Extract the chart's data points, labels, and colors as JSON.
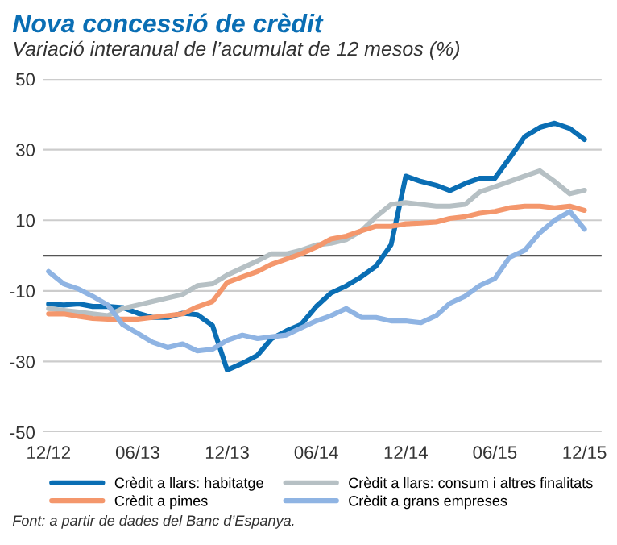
{
  "chart_data": {
    "type": "line",
    "title": "Nova concessió de crèdit",
    "subtitle": "Variació interanual de l’acumulat de 12 mesos (%)",
    "x": [
      "2012-12",
      "2013-01",
      "2013-02",
      "2013-03",
      "2013-04",
      "2013-05",
      "2013-06",
      "2013-07",
      "2013-08",
      "2013-09",
      "2013-10",
      "2013-11",
      "2013-12",
      "2014-01",
      "2014-02",
      "2014-03",
      "2014-04",
      "2014-05",
      "2014-06",
      "2014-07",
      "2014-08",
      "2014-09",
      "2014-10",
      "2014-11",
      "2014-12",
      "2015-01",
      "2015-02",
      "2015-03",
      "2015-04",
      "2015-05",
      "2015-06",
      "2015-07",
      "2015-08",
      "2015-09",
      "2015-10",
      "2015-11",
      "2015-12"
    ],
    "series": [
      {
        "name": "Crèdit a llars: habitatge",
        "color": "#0a6eb4",
        "values": [
          -13.7,
          -14,
          -13.7,
          -14.4,
          -14.4,
          -14.7,
          -16.3,
          -17.5,
          -17.5,
          -16.3,
          -16.7,
          -19.8,
          -32.4,
          -30.5,
          -28.2,
          -23.6,
          -21.3,
          -19.5,
          -14.4,
          -10.6,
          -8.6,
          -6,
          -3,
          3.1,
          22.5,
          21,
          19.9,
          18.4,
          20.4,
          21.9,
          21.9,
          27.6,
          33.7,
          36.3,
          37.5,
          36,
          32.9
        ]
      },
      {
        "name": "Crèdit a llars: consum i altres finalitats",
        "color": "#b6c0c4",
        "values": [
          -15,
          -15.5,
          -16,
          -16.5,
          -17,
          -15,
          -14,
          -13,
          -12,
          -11,
          -8.5,
          -8,
          -5.5,
          -3.5,
          -1.5,
          0.5,
          0.5,
          1.5,
          3,
          3.5,
          4.5,
          7,
          11,
          14.5,
          15,
          14.5,
          14,
          14,
          14.5,
          18,
          19.5,
          21,
          22.5,
          24,
          21,
          17.5,
          18.5
        ]
      },
      {
        "name": "Crèdit a pimes",
        "color": "#f4976c",
        "values": [
          -16.5,
          -16.5,
          -17.2,
          -17.8,
          -18,
          -18,
          -18,
          -17.5,
          -17,
          -16.5,
          -14.5,
          -13,
          -7.6,
          -6,
          -4.5,
          -2.5,
          -1,
          0.5,
          2.4,
          4.7,
          5.5,
          7,
          8.3,
          8.3,
          9,
          9.2,
          9.5,
          10.5,
          11,
          12,
          12.5,
          13.5,
          14,
          14,
          13.5,
          14,
          12.8
        ]
      },
      {
        "name": "Crèdit a grans empreses",
        "color": "#8fb4e3",
        "values": [
          -4.5,
          -8,
          -9.5,
          -11.5,
          -14,
          -19.5,
          -22,
          -24.5,
          -26,
          -25,
          -27,
          -26.5,
          -24,
          -22.5,
          -23.5,
          -23,
          -22.5,
          -20.5,
          -18.5,
          -17,
          -15,
          -17.5,
          -17.5,
          -18.5,
          -18.5,
          -19,
          -17,
          -13.5,
          -11.5,
          -8.5,
          -6.5,
          -0.5,
          1.5,
          6.5,
          10,
          12.5,
          7.5
        ]
      }
    ],
    "xlim": [
      "2012-11-20",
      "2016-01-05"
    ],
    "xticks": [
      {
        "value": "2012-12",
        "label": "12/12"
      },
      {
        "value": "2013-06",
        "label": "06/13"
      },
      {
        "value": "2013-12",
        "label": "12/13"
      },
      {
        "value": "2014-06",
        "label": "06/14"
      },
      {
        "value": "2014-12",
        "label": "12/14"
      },
      {
        "value": "2015-06",
        "label": "06/15"
      },
      {
        "value": "2015-12",
        "label": "12/15"
      }
    ],
    "ylim": [
      -50,
      50
    ],
    "yticks": [
      -50,
      -30,
      -10,
      10,
      30,
      50
    ],
    "grid": "y",
    "ref_lines": [
      {
        "axis": "y",
        "value": 0,
        "color": "#555555"
      }
    ],
    "legend": "bottom",
    "marker": "none",
    "line_style": "solid",
    "annotations": [
      "Font: a partir de dades del Banc d’Espanya."
    ]
  }
}
